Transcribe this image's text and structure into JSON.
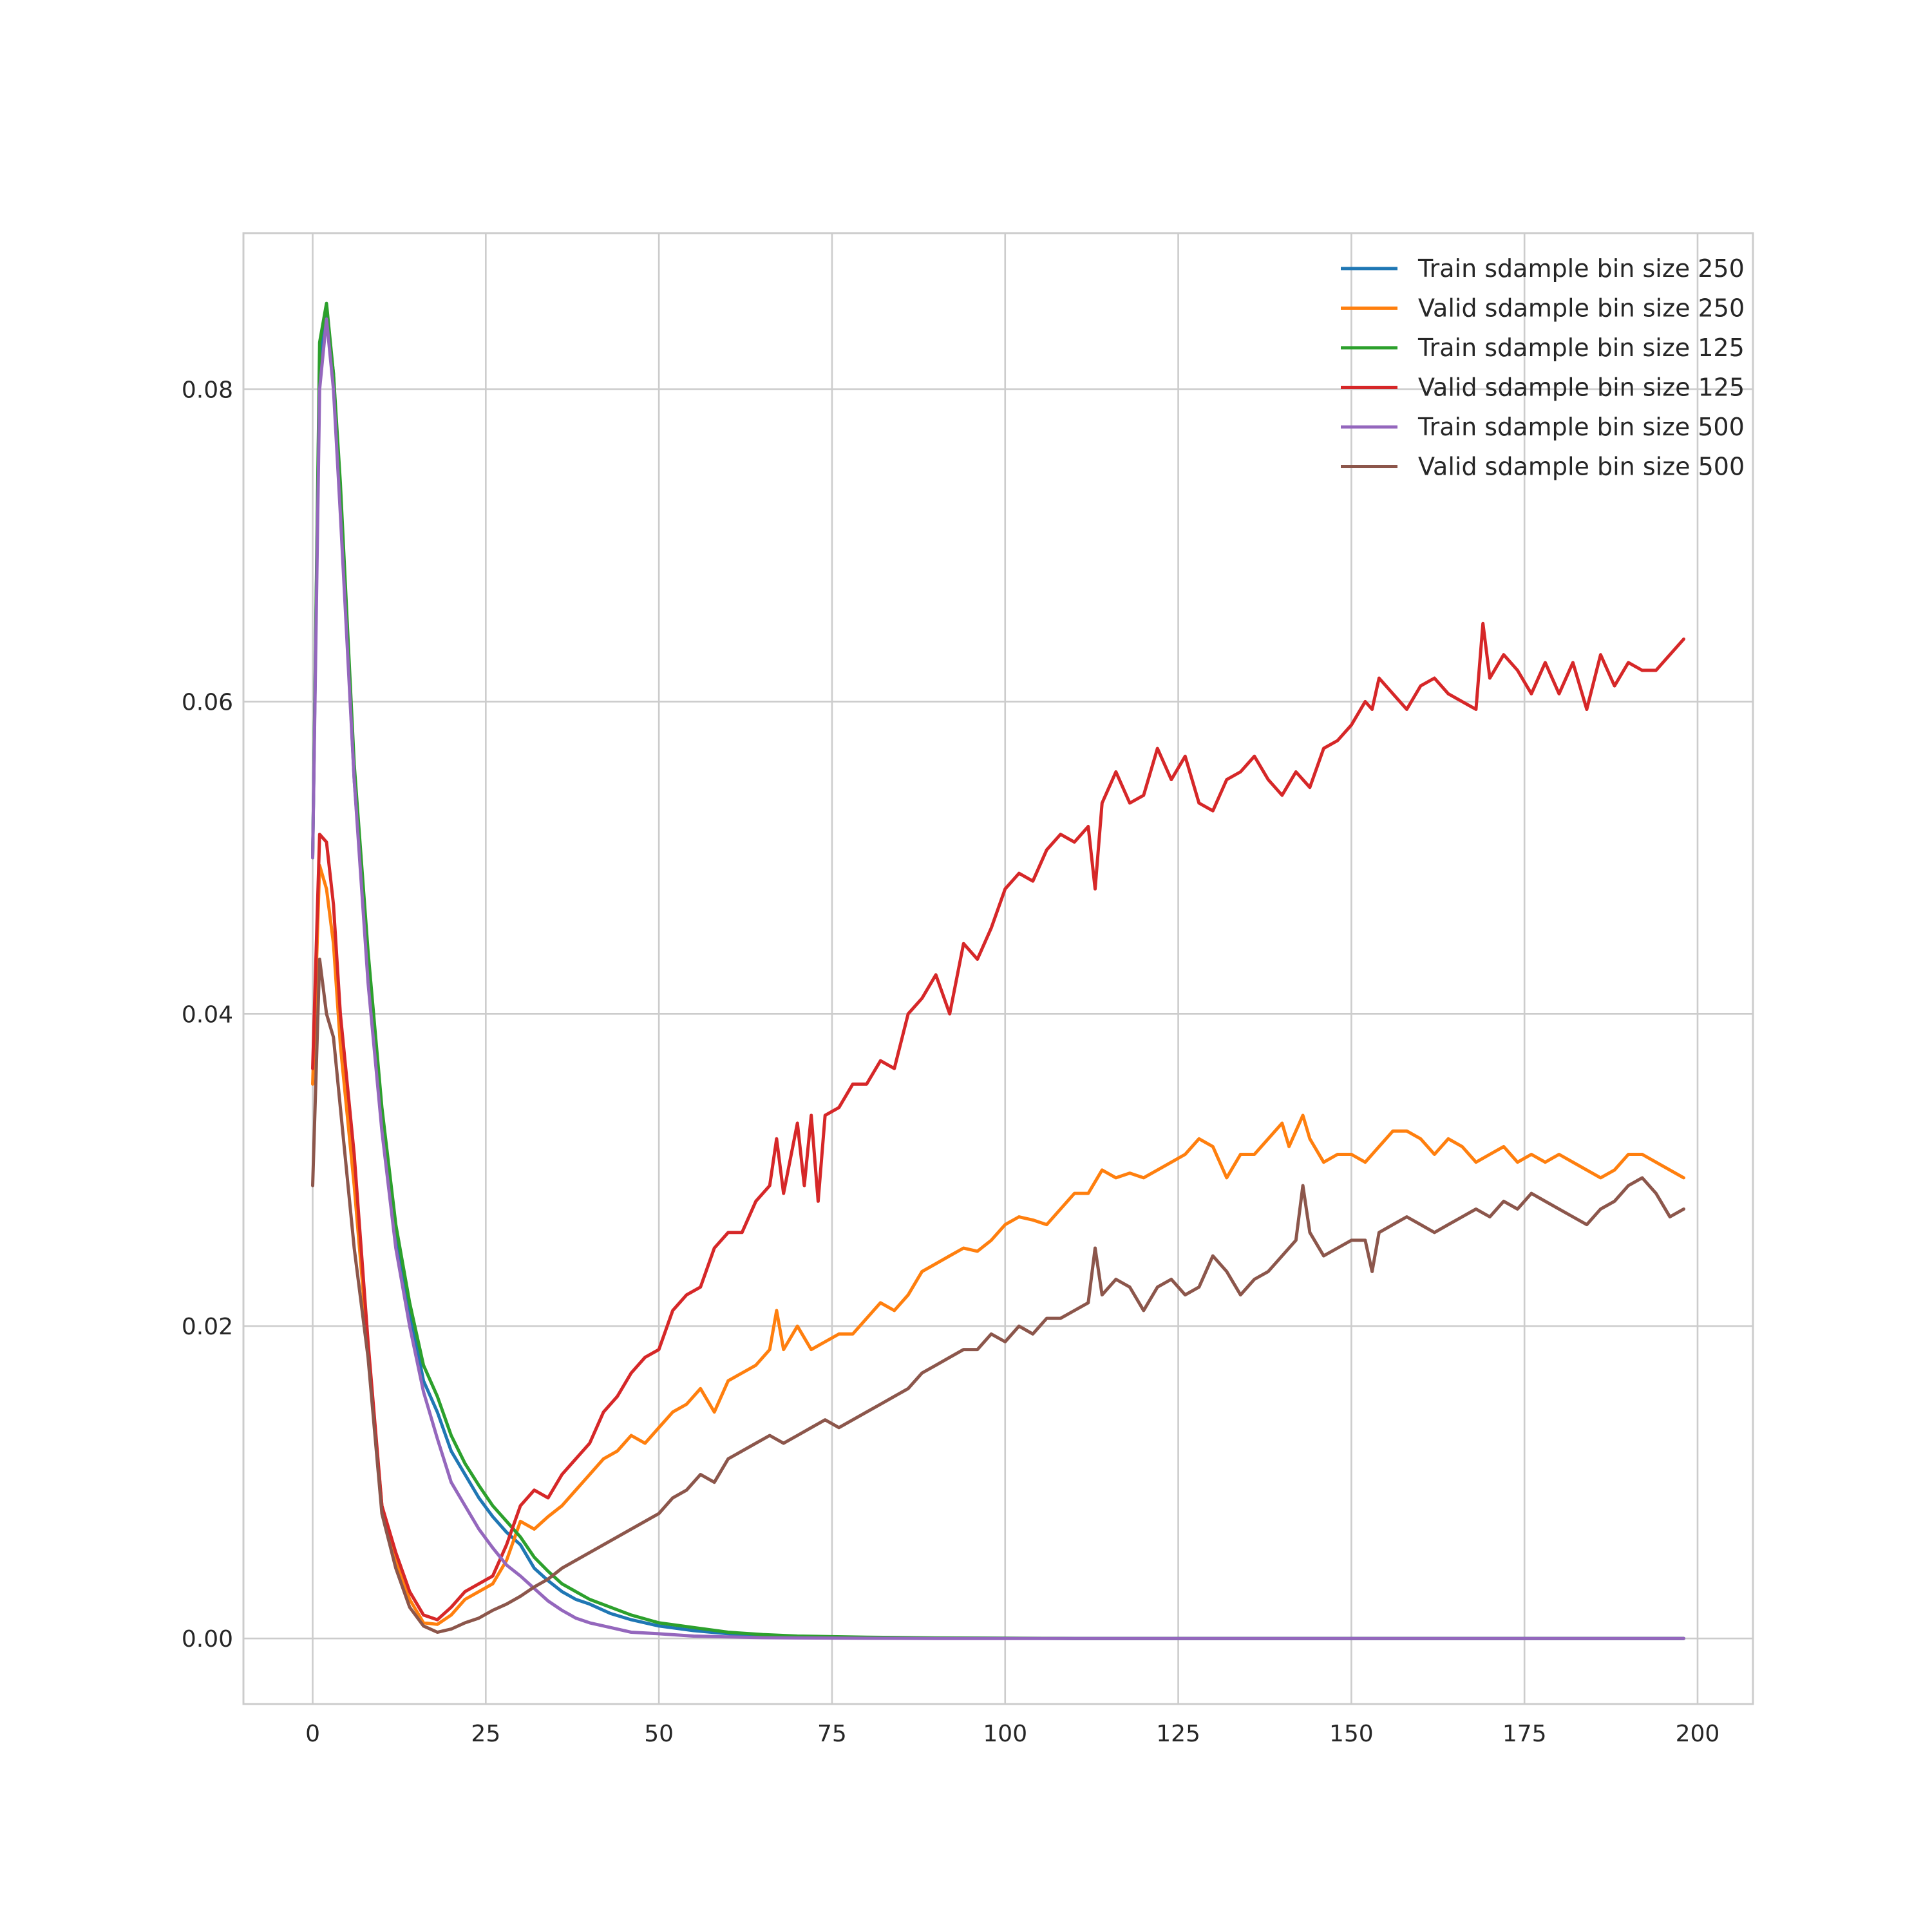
{
  "chart_data": {
    "type": "line",
    "title": "",
    "xlabel": "",
    "ylabel": "",
    "xlim": [
      -10,
      208
    ],
    "ylim": [
      -0.0042,
      0.09
    ],
    "xticks": [
      0,
      25,
      50,
      75,
      100,
      125,
      150,
      175,
      200
    ],
    "yticks": [
      0.0,
      0.02,
      0.04,
      0.06,
      0.08
    ],
    "xtick_labels": [
      "0",
      "25",
      "50",
      "75",
      "100",
      "125",
      "150",
      "175",
      "200"
    ],
    "ytick_labels": [
      "0.00",
      "0.02",
      "0.04",
      "0.06",
      "0.08"
    ],
    "grid": true,
    "legend_position": "top-right",
    "series": [
      {
        "name": "Train sdample bin size 250",
        "color": "#1f77b4",
        "x": [
          0,
          1,
          2,
          3,
          4,
          6,
          8,
          10,
          12,
          14,
          16,
          18,
          20,
          22,
          24,
          26,
          28,
          30,
          32,
          34,
          36,
          38,
          40,
          43,
          46,
          50,
          55,
          60,
          65,
          70,
          80,
          90,
          110,
          150,
          198
        ],
        "y": [
          0.05,
          0.082,
          0.085,
          0.081,
          0.073,
          0.055,
          0.043,
          0.033,
          0.026,
          0.021,
          0.0165,
          0.0145,
          0.012,
          0.0105,
          0.009,
          0.0078,
          0.0068,
          0.006,
          0.0045,
          0.0037,
          0.003,
          0.0025,
          0.0022,
          0.0016,
          0.0012,
          0.0008,
          0.0005,
          0.0003,
          0.0002,
          0.0001,
          5e-05,
          2e-05,
          0.0,
          0.0,
          0.0
        ]
      },
      {
        "name": "Valid sdample bin size 250",
        "color": "#ff7f0e",
        "x": [
          0,
          1,
          2,
          3,
          4,
          6,
          8,
          10,
          12,
          14,
          16,
          18,
          20,
          22,
          24,
          26,
          28,
          30,
          32,
          34,
          36,
          38,
          40,
          42,
          44,
          46,
          48,
          50,
          52,
          54,
          56,
          58,
          60,
          62,
          64,
          66,
          67,
          68,
          70,
          72,
          74,
          76,
          78,
          80,
          82,
          84,
          86,
          88,
          90,
          92,
          94,
          96,
          98,
          100,
          102,
          104,
          106,
          108,
          110,
          112,
          114,
          116,
          118,
          120,
          122,
          124,
          126,
          128,
          130,
          132,
          134,
          136,
          138,
          140,
          141,
          142,
          143,
          144,
          146,
          148,
          150,
          152,
          154,
          156,
          158,
          160,
          162,
          164,
          166,
          168,
          170,
          172,
          174,
          176,
          178,
          180,
          182,
          184,
          186,
          188,
          190,
          192,
          194,
          196,
          198
        ],
        "y": [
          0.0355,
          0.0495,
          0.048,
          0.0445,
          0.038,
          0.029,
          0.0185,
          0.0085,
          0.005,
          0.0025,
          0.001,
          0.0009,
          0.0015,
          0.0025,
          0.003,
          0.0035,
          0.005,
          0.0075,
          0.007,
          0.0078,
          0.0085,
          0.0095,
          0.0105,
          0.0115,
          0.012,
          0.013,
          0.0125,
          0.0135,
          0.0145,
          0.015,
          0.016,
          0.0145,
          0.0165,
          0.017,
          0.0175,
          0.0185,
          0.021,
          0.0185,
          0.02,
          0.0185,
          0.019,
          0.0195,
          0.0195,
          0.0205,
          0.0215,
          0.021,
          0.022,
          0.0235,
          0.024,
          0.0245,
          0.025,
          0.0248,
          0.0255,
          0.0265,
          0.027,
          0.0268,
          0.0265,
          0.0275,
          0.0285,
          0.0285,
          0.03,
          0.0295,
          0.0298,
          0.0295,
          0.03,
          0.0305,
          0.031,
          0.032,
          0.0315,
          0.0295,
          0.031,
          0.031,
          0.032,
          0.033,
          0.0315,
          0.0325,
          0.0335,
          0.032,
          0.0305,
          0.031,
          0.031,
          0.0305,
          0.0315,
          0.0325,
          0.0325,
          0.032,
          0.031,
          0.032,
          0.0315,
          0.0305,
          0.031,
          0.0315,
          0.0305,
          0.031,
          0.0305,
          0.031,
          0.0305,
          0.03,
          0.0295,
          0.03,
          0.031,
          0.031,
          0.0305,
          0.03,
          0.0295
        ]
      },
      {
        "name": "Train sdample bin size 125",
        "color": "#2ca02c",
        "x": [
          0,
          1,
          2,
          3,
          4,
          6,
          8,
          10,
          12,
          14,
          16,
          18,
          20,
          22,
          24,
          26,
          28,
          30,
          32,
          34,
          36,
          38,
          40,
          43,
          46,
          50,
          55,
          60,
          65,
          70,
          80,
          90,
          110,
          150,
          198
        ],
        "y": [
          0.05,
          0.083,
          0.0855,
          0.081,
          0.074,
          0.056,
          0.044,
          0.034,
          0.0265,
          0.0215,
          0.0175,
          0.0155,
          0.013,
          0.0112,
          0.0098,
          0.0085,
          0.0075,
          0.0065,
          0.0052,
          0.0043,
          0.0035,
          0.003,
          0.0025,
          0.002,
          0.0015,
          0.001,
          0.0007,
          0.0004,
          0.00025,
          0.00015,
          8e-05,
          3e-05,
          0.0,
          0.0,
          0.0
        ]
      },
      {
        "name": "Valid sdample bin size 125",
        "color": "#d62728",
        "x": [
          0,
          1,
          2,
          3,
          4,
          6,
          8,
          10,
          12,
          14,
          16,
          18,
          20,
          22,
          24,
          26,
          28,
          30,
          32,
          34,
          36,
          38,
          40,
          42,
          44,
          46,
          48,
          50,
          52,
          54,
          56,
          58,
          60,
          62,
          64,
          66,
          67,
          68,
          70,
          71,
          72,
          73,
          74,
          76,
          78,
          80,
          82,
          84,
          86,
          88,
          90,
          92,
          94,
          96,
          98,
          100,
          102,
          104,
          106,
          108,
          110,
          112,
          113,
          114,
          116,
          118,
          120,
          122,
          124,
          126,
          128,
          130,
          132,
          134,
          136,
          138,
          140,
          142,
          144,
          146,
          148,
          150,
          152,
          153,
          154,
          156,
          158,
          160,
          162,
          164,
          166,
          168,
          169,
          170,
          172,
          174,
          176,
          178,
          180,
          182,
          184,
          186,
          188,
          190,
          192,
          194,
          196,
          198
        ],
        "y": [
          0.0365,
          0.0515,
          0.051,
          0.047,
          0.04,
          0.031,
          0.019,
          0.0085,
          0.0055,
          0.003,
          0.0015,
          0.0012,
          0.002,
          0.003,
          0.0035,
          0.004,
          0.006,
          0.0085,
          0.0095,
          0.009,
          0.0105,
          0.0115,
          0.0125,
          0.0145,
          0.0155,
          0.017,
          0.018,
          0.0185,
          0.021,
          0.022,
          0.0225,
          0.025,
          0.026,
          0.026,
          0.028,
          0.029,
          0.032,
          0.0285,
          0.033,
          0.029,
          0.0335,
          0.028,
          0.0335,
          0.034,
          0.0355,
          0.0355,
          0.037,
          0.0365,
          0.04,
          0.041,
          0.0425,
          0.04,
          0.0445,
          0.0435,
          0.0455,
          0.048,
          0.049,
          0.0485,
          0.0505,
          0.0515,
          0.051,
          0.052,
          0.048,
          0.0535,
          0.0555,
          0.0535,
          0.054,
          0.057,
          0.055,
          0.0565,
          0.0535,
          0.053,
          0.055,
          0.0555,
          0.0565,
          0.055,
          0.054,
          0.0555,
          0.0545,
          0.057,
          0.0575,
          0.0585,
          0.06,
          0.0595,
          0.0615,
          0.0605,
          0.0595,
          0.061,
          0.0615,
          0.0605,
          0.06,
          0.0595,
          0.065,
          0.0615,
          0.063,
          0.062,
          0.0605,
          0.0625,
          0.0605,
          0.0625,
          0.0595,
          0.063,
          0.061,
          0.0625,
          0.062,
          0.062,
          0.063,
          0.064
        ]
      },
      {
        "name": "Train sdample bin size 500",
        "color": "#9467bd",
        "x": [
          0,
          1,
          2,
          3,
          4,
          6,
          8,
          10,
          12,
          14,
          16,
          18,
          20,
          22,
          24,
          26,
          28,
          30,
          32,
          34,
          36,
          38,
          40,
          43,
          46,
          50,
          55,
          60,
          65,
          70,
          80,
          90,
          110,
          150,
          198
        ],
        "y": [
          0.05,
          0.08,
          0.0845,
          0.08,
          0.072,
          0.055,
          0.042,
          0.0325,
          0.025,
          0.02,
          0.0158,
          0.0128,
          0.01,
          0.0085,
          0.007,
          0.0058,
          0.0047,
          0.004,
          0.0032,
          0.0024,
          0.0018,
          0.0013,
          0.001,
          0.0007,
          0.0004,
          0.0003,
          0.00015,
          0.0001,
          5e-05,
          3e-05,
          1e-05,
          0.0,
          0.0,
          0.0,
          0.0
        ]
      },
      {
        "name": "Valid sdample bin size 500",
        "color": "#8c564b",
        "x": [
          0,
          1,
          2,
          3,
          4,
          6,
          8,
          10,
          12,
          14,
          16,
          18,
          20,
          22,
          24,
          26,
          28,
          30,
          32,
          34,
          36,
          38,
          40,
          42,
          44,
          46,
          48,
          50,
          52,
          54,
          56,
          58,
          60,
          62,
          64,
          66,
          68,
          70,
          72,
          74,
          76,
          78,
          80,
          82,
          84,
          86,
          88,
          90,
          92,
          94,
          96,
          98,
          100,
          102,
          104,
          106,
          108,
          110,
          112,
          113,
          114,
          116,
          118,
          120,
          122,
          124,
          126,
          128,
          130,
          132,
          134,
          136,
          138,
          140,
          142,
          143,
          144,
          146,
          148,
          150,
          152,
          153,
          154,
          156,
          158,
          160,
          162,
          164,
          166,
          168,
          170,
          172,
          174,
          176,
          178,
          180,
          182,
          184,
          186,
          188,
          190,
          192,
          194,
          196,
          198
        ],
        "y": [
          0.029,
          0.0435,
          0.04,
          0.0385,
          0.034,
          0.025,
          0.018,
          0.008,
          0.0045,
          0.002,
          0.0008,
          0.0004,
          0.0006,
          0.001,
          0.0013,
          0.0018,
          0.0022,
          0.0027,
          0.0033,
          0.0038,
          0.0045,
          0.005,
          0.0055,
          0.006,
          0.0065,
          0.007,
          0.0075,
          0.008,
          0.009,
          0.0095,
          0.0105,
          0.01,
          0.0115,
          0.012,
          0.0125,
          0.013,
          0.0125,
          0.013,
          0.0135,
          0.014,
          0.0135,
          0.014,
          0.0145,
          0.015,
          0.0155,
          0.016,
          0.017,
          0.0175,
          0.018,
          0.0185,
          0.0185,
          0.0195,
          0.019,
          0.02,
          0.0195,
          0.0205,
          0.0205,
          0.021,
          0.0215,
          0.025,
          0.022,
          0.023,
          0.0225,
          0.021,
          0.0225,
          0.023,
          0.022,
          0.0225,
          0.0245,
          0.0235,
          0.022,
          0.023,
          0.0235,
          0.0245,
          0.0255,
          0.029,
          0.026,
          0.0245,
          0.025,
          0.0255,
          0.0255,
          0.0235,
          0.026,
          0.0265,
          0.027,
          0.0265,
          0.026,
          0.0265,
          0.027,
          0.0275,
          0.027,
          0.028,
          0.0275,
          0.0285,
          0.028,
          0.0275,
          0.027,
          0.0265,
          0.0275,
          0.028,
          0.029,
          0.0295,
          0.0285,
          0.027,
          0.0275
        ]
      }
    ]
  }
}
